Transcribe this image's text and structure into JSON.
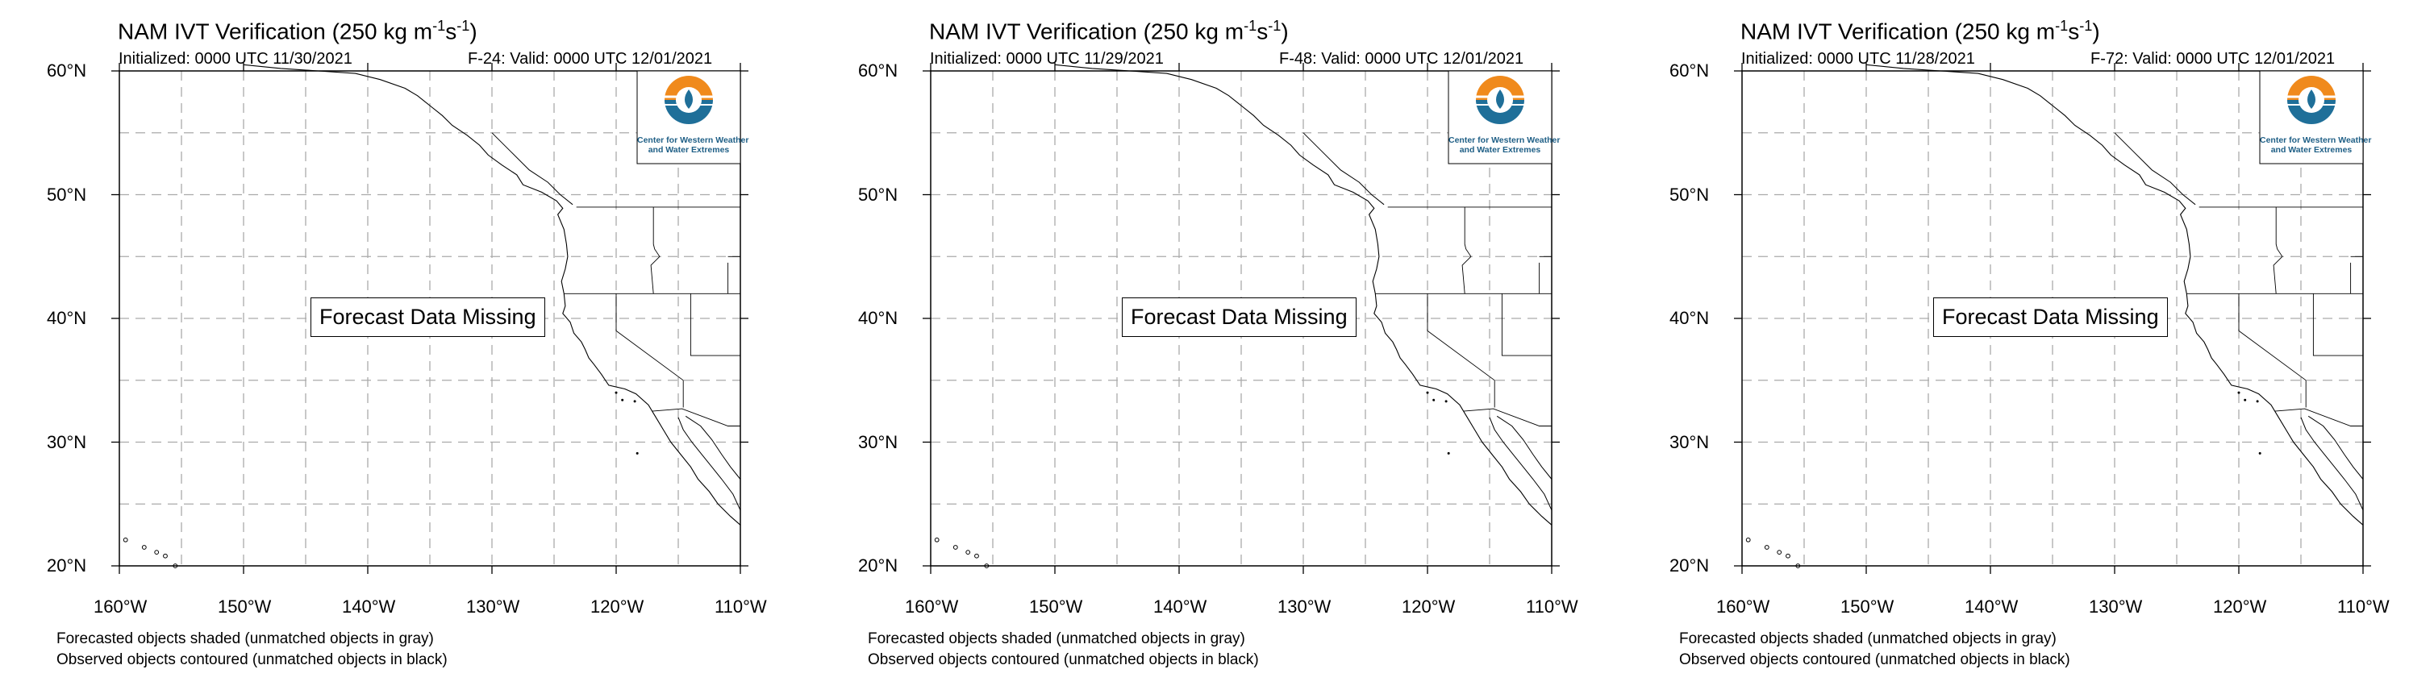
{
  "panels": [
    {
      "title": "NAM IVT Verification (250 kg m",
      "title_units_tail": "s",
      "init": "Initialized: 0000 UTC 11/30/2021",
      "valid": "F-24: Valid: 0000 UTC 12/01/2021",
      "overlay": "Forecast Data Missing",
      "logo_line1": "Center for Western Weather",
      "logo_line2": "and Water Extremes",
      "lat_labels": [
        "60°N",
        "50°N",
        "40°N",
        "30°N",
        "20°N"
      ],
      "lon_labels": [
        "160°W",
        "150°W",
        "140°W",
        "130°W",
        "120°W",
        "110°W"
      ],
      "note1": "Forecasted objects shaded (unmatched objects in gray)",
      "note2": "Observed objects contoured (unmatched objects in black)"
    },
    {
      "title": "NAM IVT Verification (250 kg m",
      "title_units_tail": "s",
      "init": "Initialized: 0000 UTC 11/29/2021",
      "valid": "F-48: Valid: 0000 UTC 12/01/2021",
      "overlay": "Forecast Data Missing",
      "logo_line1": "Center for Western Weather",
      "logo_line2": "and Water Extremes",
      "lat_labels": [
        "60°N",
        "50°N",
        "40°N",
        "30°N",
        "20°N"
      ],
      "lon_labels": [
        "160°W",
        "150°W",
        "140°W",
        "130°W",
        "120°W",
        "110°W"
      ],
      "note1": "Forecasted objects shaded (unmatched objects in gray)",
      "note2": "Observed objects contoured (unmatched objects in black)"
    },
    {
      "title": "NAM IVT Verification (250 kg m",
      "title_units_tail": "s",
      "init": "Initialized: 0000 UTC 11/28/2021",
      "valid": "F-72: Valid: 0000 UTC 12/01/2021",
      "overlay": "Forecast Data Missing",
      "logo_line1": "Center for Western Weather",
      "logo_line2": "and Water Extremes",
      "lat_labels": [
        "60°N",
        "50°N",
        "40°N",
        "30°N",
        "20°N"
      ],
      "lon_labels": [
        "160°W",
        "150°W",
        "140°W",
        "130°W",
        "120°W",
        "110°W"
      ],
      "note1": "Forecasted objects shaded (unmatched objects in gray)",
      "note2": "Observed objects contoured (unmatched objects in black)"
    }
  ],
  "colors": {
    "logo_orange": "#f08a1c",
    "logo_blue": "#1f6f99",
    "grid": "#aaaaaa"
  }
}
